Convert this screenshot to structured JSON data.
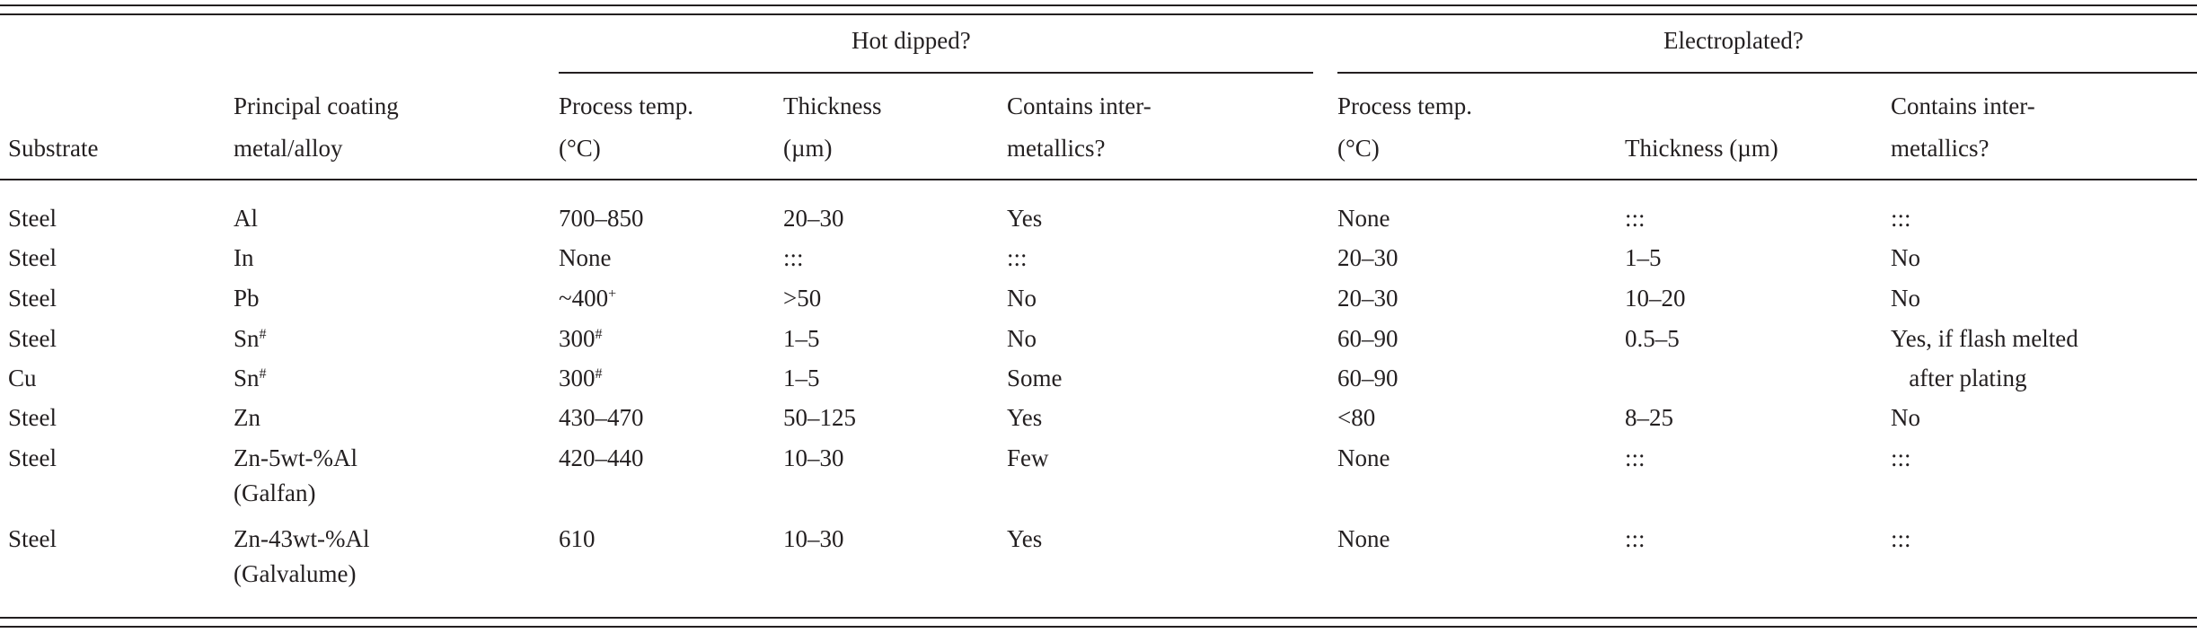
{
  "groups": {
    "hot_dipped": "Hot dipped?",
    "electroplated": "Electroplated?"
  },
  "headers": {
    "substrate": "Substrate",
    "coating_1": "Principal coating",
    "coating_2": "metal/alloy",
    "hd_temp_1": "Process temp.",
    "hd_temp_2": "(°C)",
    "hd_thick_1": "Thickness",
    "hd_thick_2": "(µm)",
    "hd_inter_1": "Contains inter-",
    "hd_inter_2": "metallics?",
    "ep_temp_1": "Process temp.",
    "ep_temp_2": "(°C)",
    "ep_thick": "Thickness (µm)",
    "ep_inter_1": "Contains inter-",
    "ep_inter_2": "metallics?"
  },
  "rows": [
    {
      "substrate": "Steel",
      "coating": "Al",
      "coating_sup": "",
      "coating_2": "",
      "hd_temp": "700–850",
      "hd_temp_sup": "",
      "hd_thick": "20–30",
      "hd_inter": "Yes",
      "ep_temp": "None",
      "ep_thick": ":::",
      "ep_inter": ":::"
    },
    {
      "substrate": "Steel",
      "coating": "In",
      "coating_sup": "",
      "coating_2": "",
      "hd_temp": "None",
      "hd_temp_sup": "",
      "hd_thick": ":::",
      "hd_inter": ":::",
      "ep_temp": "20–30",
      "ep_thick": "1–5",
      "ep_inter": "No"
    },
    {
      "substrate": "Steel",
      "coating": "Pb",
      "coating_sup": "",
      "coating_2": "",
      "hd_temp": "~400",
      "hd_temp_sup": "+",
      "hd_thick": ">50",
      "hd_inter": "No",
      "ep_temp": "20–30",
      "ep_thick": "10–20",
      "ep_inter": "No"
    },
    {
      "substrate": "Steel",
      "coating": "Sn",
      "coating_sup": "#",
      "coating_2": "",
      "hd_temp": "300",
      "hd_temp_sup": "#",
      "hd_thick": "1–5",
      "hd_inter": "No",
      "ep_temp": "60–90",
      "ep_thick": "0.5–5",
      "ep_inter": "Yes, if flash melted"
    },
    {
      "substrate": "Cu",
      "coating": "Sn",
      "coating_sup": "#",
      "coating_2": "",
      "hd_temp": "300",
      "hd_temp_sup": "#",
      "hd_thick": "1–5",
      "hd_inter": "Some",
      "ep_temp": "60–90",
      "ep_thick": "",
      "ep_inter": "   after plating"
    },
    {
      "substrate": "Steel",
      "coating": "Zn",
      "coating_sup": "",
      "coating_2": "",
      "hd_temp": "430–470",
      "hd_temp_sup": "",
      "hd_thick": "50–125",
      "hd_inter": "Yes",
      "ep_temp": "<80",
      "ep_thick": "8–25",
      "ep_inter": "No"
    },
    {
      "substrate": "Steel",
      "coating": "Zn-5wt-%Al",
      "coating_sup": "",
      "coating_2": "(Galfan)",
      "hd_temp": "420–440",
      "hd_temp_sup": "",
      "hd_thick": "10–30",
      "hd_inter": "Few",
      "ep_temp": "None",
      "ep_thick": ":::",
      "ep_inter": ":::"
    },
    {
      "substrate": "Steel",
      "coating": "Zn-43wt-%Al",
      "coating_sup": "",
      "coating_2": "(Galvalume)",
      "hd_temp": "610",
      "hd_temp_sup": "",
      "hd_thick": "10–30",
      "hd_inter": "Yes",
      "ep_temp": "None",
      "ep_thick": ":::",
      "ep_inter": ":::"
    }
  ]
}
